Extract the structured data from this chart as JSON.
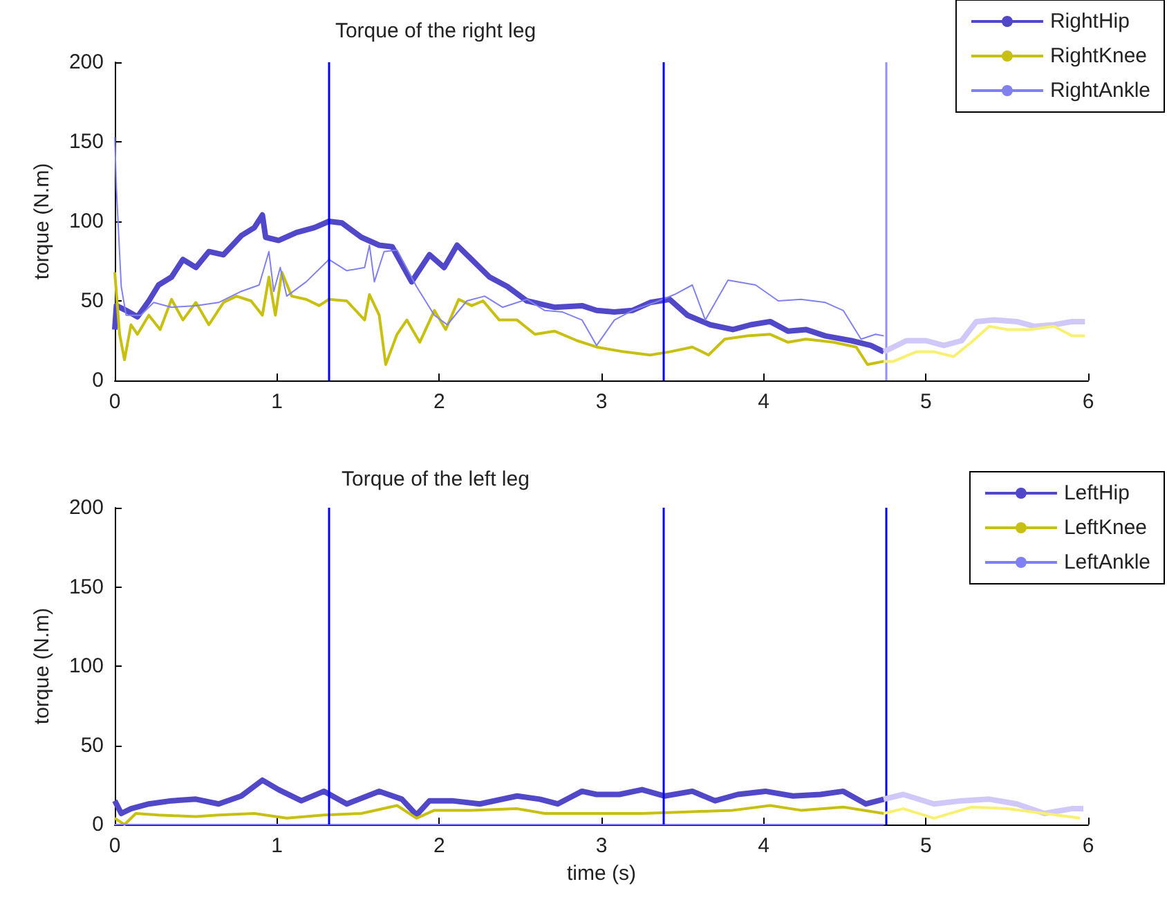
{
  "chart_data": [
    {
      "type": "line",
      "title": "Torque of the right leg",
      "ylabel": "torque (N.m)",
      "xlim": [
        0,
        6
      ],
      "ylim": [
        0,
        200
      ],
      "xticks": [
        0,
        1,
        2,
        3,
        4,
        5,
        6
      ],
      "yticks": [
        0,
        50,
        100,
        150,
        200
      ],
      "grid": false,
      "legend": "top right",
      "marker": "none",
      "series": [
        {
          "name": "RightHip",
          "color": "#5048c8",
          "x": [
            0,
            0.01,
            0.07,
            0.14,
            0.21,
            0.27,
            0.35,
            0.42,
            0.5,
            0.58,
            0.67,
            0.78,
            0.86,
            0.91,
            0.93,
            1.01,
            1.12,
            1.23,
            1.32,
            1.4,
            1.52,
            1.63,
            1.71,
            1.83,
            1.94,
            2.03,
            2.11,
            2.2,
            2.31,
            2.42,
            2.54,
            2.71,
            2.88,
            2.97,
            3.08,
            3.19,
            3.3,
            3.42,
            3.53,
            3.67,
            3.81,
            3.92,
            4.04,
            4.15,
            4.26,
            4.38,
            4.54,
            4.66,
            4.74
          ],
          "values": [
            32,
            47,
            44,
            40,
            50,
            60,
            65,
            76,
            71,
            81,
            79,
            91,
            96,
            104,
            90,
            88,
            93,
            96,
            100,
            99,
            90,
            85,
            84,
            62,
            79,
            71,
            85,
            76,
            65,
            59,
            50,
            46,
            47,
            44,
            43,
            44,
            49,
            51,
            41,
            35,
            32,
            35,
            37,
            31,
            32,
            28,
            25,
            22,
            18
          ]
        },
        {
          "name": "RightKnee",
          "color": "#c8c010",
          "x": [
            0,
            0.03,
            0.06,
            0.1,
            0.14,
            0.21,
            0.28,
            0.35,
            0.42,
            0.5,
            0.58,
            0.67,
            0.75,
            0.84,
            0.91,
            0.95,
            0.99,
            1.03,
            1.09,
            1.18,
            1.26,
            1.32,
            1.43,
            1.54,
            1.57,
            1.63,
            1.67,
            1.74,
            1.8,
            1.88,
            1.97,
            2.04,
            2.12,
            2.2,
            2.27,
            2.37,
            2.48,
            2.59,
            2.71,
            2.85,
            2.97,
            3.14,
            3.3,
            3.42,
            3.56,
            3.66,
            3.76,
            3.9,
            4.04,
            4.15,
            4.26,
            4.43,
            4.57,
            4.64,
            4.74
          ],
          "values": [
            68,
            29,
            13,
            35,
            29,
            41,
            32,
            51,
            38,
            49,
            35,
            49,
            53,
            50,
            41,
            65,
            41,
            68,
            53,
            51,
            47,
            51,
            50,
            38,
            54,
            41,
            10,
            29,
            38,
            24,
            44,
            32,
            51,
            47,
            50,
            38,
            38,
            29,
            31,
            25,
            21,
            18,
            16,
            18,
            21,
            16,
            26,
            28,
            29,
            24,
            26,
            24,
            21,
            10,
            12
          ]
        },
        {
          "name": "RightAnkle",
          "color": "#8080f0",
          "x": [
            0,
            0.01,
            0.04,
            0.07,
            0.16,
            0.24,
            0.35,
            0.5,
            0.64,
            0.78,
            0.89,
            0.95,
            0.98,
            1.02,
            1.06,
            1.18,
            1.32,
            1.43,
            1.54,
            1.57,
            1.6,
            1.66,
            1.74,
            1.86,
            1.97,
            2.05,
            2.17,
            2.28,
            2.39,
            2.54,
            2.65,
            2.76,
            2.88,
            2.97,
            3.08,
            3.19,
            3.33,
            3.45,
            3.56,
            3.64,
            3.78,
            3.95,
            4.09,
            4.23,
            4.38,
            4.49,
            4.6,
            4.69,
            4.74
          ],
          "values": [
            153,
            121,
            59,
            41,
            41,
            49,
            46,
            47,
            49,
            56,
            60,
            81,
            56,
            71,
            53,
            62,
            76,
            69,
            71,
            85,
            62,
            81,
            82,
            59,
            41,
            35,
            50,
            53,
            46,
            51,
            44,
            43,
            38,
            22,
            38,
            44,
            49,
            54,
            60,
            38,
            63,
            60,
            50,
            51,
            49,
            44,
            26,
            29,
            28
          ]
        },
        {
          "color": "#d0c8f8",
          "x": [
            4.74,
            4.88,
            5.0,
            5.11,
            5.22,
            5.31,
            5.42,
            5.56,
            5.67,
            5.79,
            5.9,
            5.98
          ],
          "values": [
            18,
            25,
            25,
            22,
            25,
            37,
            38,
            37,
            34,
            35,
            37,
            37
          ]
        },
        {
          "color": "#f8f070",
          "x": [
            4.74,
            4.8,
            4.94,
            5.05,
            5.17,
            5.28,
            5.39,
            5.5,
            5.64,
            5.79,
            5.9,
            5.98
          ],
          "values": [
            12,
            12,
            18,
            18,
            15,
            24,
            34,
            32,
            32,
            34,
            28,
            28
          ]
        }
      ],
      "ref_lines": [
        {
          "axis": "x",
          "value": 1.32,
          "color": "#0000ff"
        },
        {
          "axis": "x",
          "value": 3.38,
          "color": "#0000ff"
        },
        {
          "axis": "x",
          "value": 4.75,
          "color": "#9090ff"
        }
      ]
    },
    {
      "type": "line",
      "title": "Torque of the left leg",
      "xlabel": "time (s)",
      "ylabel": "torque (N.m)",
      "xlim": [
        0,
        6
      ],
      "ylim": [
        0,
        200
      ],
      "xticks": [
        0,
        1,
        2,
        3,
        4,
        5,
        6
      ],
      "yticks": [
        0,
        50,
        100,
        150,
        200
      ],
      "grid": false,
      "legend": "top right",
      "marker": "none",
      "series": [
        {
          "name": "LeftHip",
          "color": "#5048c8",
          "x": [
            0,
            0.04,
            0.1,
            0.21,
            0.35,
            0.5,
            0.64,
            0.78,
            0.91,
            1.01,
            1.15,
            1.29,
            1.43,
            1.63,
            1.77,
            1.86,
            1.94,
            2.08,
            2.25,
            2.48,
            2.62,
            2.73,
            2.88,
            2.97,
            3.11,
            3.25,
            3.39,
            3.56,
            3.7,
            3.84,
            4.01,
            4.18,
            4.35,
            4.49,
            4.63,
            4.74
          ],
          "values": [
            15,
            7,
            10,
            13,
            15,
            16,
            13,
            18,
            28,
            22,
            15,
            21,
            13,
            21,
            16,
            6,
            15,
            15,
            13,
            18,
            16,
            13,
            21,
            19,
            19,
            22,
            18,
            21,
            15,
            19,
            21,
            18,
            19,
            21,
            13,
            16
          ]
        },
        {
          "name": "LeftKnee",
          "color": "#c8c010",
          "x": [
            0,
            0.06,
            0.13,
            0.27,
            0.5,
            0.64,
            0.86,
            1.06,
            1.29,
            1.52,
            1.74,
            1.86,
            1.97,
            2.2,
            2.48,
            2.65,
            2.97,
            3.25,
            3.53,
            3.81,
            4.04,
            4.23,
            4.49,
            4.74
          ],
          "values": [
            4,
            0,
            7,
            6,
            5,
            6,
            7,
            4,
            6,
            7,
            12,
            4,
            9,
            9,
            10,
            7,
            7,
            7,
            8,
            9,
            12,
            9,
            11,
            7
          ]
        },
        {
          "name": "LeftAnkle",
          "color": "#8080f0",
          "x": [
            0,
            1,
            2,
            3,
            4,
            4.74
          ],
          "values": [
            0,
            0,
            0,
            0,
            0,
            0
          ]
        },
        {
          "color": "#d0c8f8",
          "x": [
            4.74,
            4.86,
            5.05,
            5.22,
            5.39,
            5.56,
            5.73,
            5.9,
            5.97
          ],
          "values": [
            16,
            19,
            13,
            15,
            16,
            13,
            7,
            10,
            10
          ]
        },
        {
          "color": "#f8f070",
          "x": [
            4.74,
            4.86,
            5.05,
            5.28,
            5.5,
            5.73,
            5.95
          ],
          "values": [
            7,
            10,
            4,
            11,
            10,
            7,
            4
          ]
        }
      ],
      "ref_lines": [
        {
          "axis": "x",
          "value": 1.32,
          "color": "#0000ff"
        },
        {
          "axis": "x",
          "value": 3.38,
          "color": "#0000ff"
        },
        {
          "axis": "x",
          "value": 4.75,
          "color": "#0000ff"
        }
      ]
    }
  ]
}
